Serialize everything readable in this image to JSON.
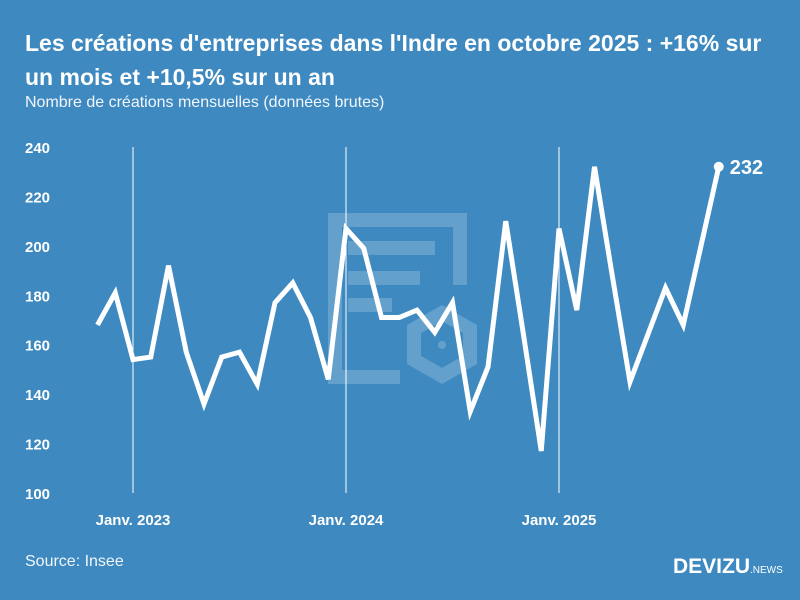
{
  "title": "Les créations d'entreprises dans l'Indre en octobre 2025 : +16% sur un mois et +10,5% sur un an",
  "subtitle": "Nombre de créations mensuelles (données brutes)",
  "source": "Source: Insee",
  "logo": {
    "main": "DEVIZU",
    "suffix": "NEWS"
  },
  "colors": {
    "background": "#3d89c0",
    "line": "#ffffff"
  },
  "chart_data": {
    "type": "line",
    "ylim": [
      100,
      240
    ],
    "yticks": [
      100,
      120,
      140,
      160,
      180,
      200,
      220,
      240
    ],
    "xtick_labels": [
      {
        "label": "Janv. 2023",
        "month": "2023-01"
      },
      {
        "label": "Janv. 2024",
        "month": "2024-01"
      },
      {
        "label": "Janv. 2025",
        "month": "2025-01"
      }
    ],
    "grid": "vertical lines at January",
    "x": [
      "2022-11",
      "2022-12",
      "2023-01",
      "2023-02",
      "2023-03",
      "2023-04",
      "2023-05",
      "2023-06",
      "2023-07",
      "2023-08",
      "2023-09",
      "2023-10",
      "2023-11",
      "2023-12",
      "2024-01",
      "2024-02",
      "2024-03",
      "2024-04",
      "2024-05",
      "2024-06",
      "2024-07",
      "2024-08",
      "2024-09",
      "2024-10",
      "2024-11",
      "2024-12",
      "2025-01",
      "2025-02",
      "2025-03",
      "2025-04",
      "2025-05",
      "2025-06",
      "2025-07",
      "2025-08",
      "2025-09",
      "2025-10"
    ],
    "values": [
      168,
      181,
      154,
      155,
      192,
      157,
      136,
      155,
      157,
      144,
      177,
      185,
      171,
      146,
      207,
      199,
      171,
      171,
      174,
      165,
      177,
      133,
      151,
      210,
      164,
      117,
      207,
      174,
      232,
      188,
      145,
      164,
      183,
      168,
      200,
      232
    ],
    "last_label": "232"
  }
}
